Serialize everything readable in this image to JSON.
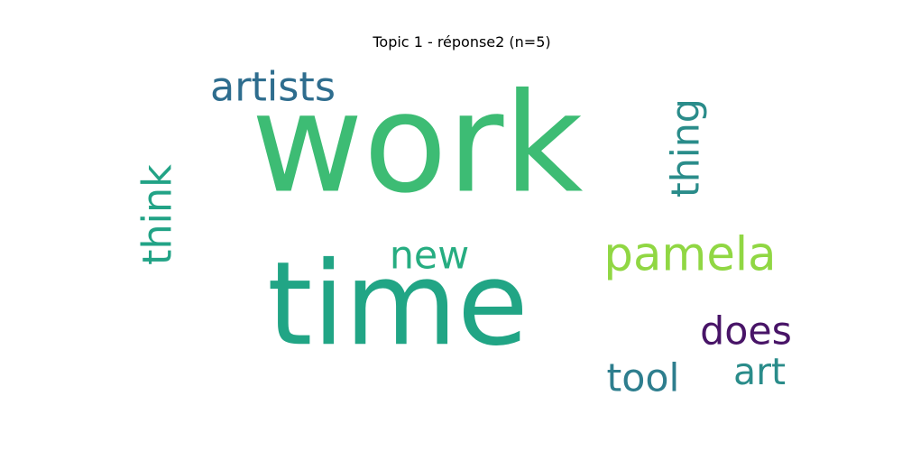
{
  "chart_data": {
    "type": "wordcloud",
    "title": "Topic 1 - réponse2 (n=5)",
    "words": [
      {
        "text": "work",
        "color": "#3dbc74"
      },
      {
        "text": "time",
        "color": "#21a585"
      },
      {
        "text": "artists",
        "color": "#2e6d8e"
      },
      {
        "text": "think",
        "color": "#22a386"
      },
      {
        "text": "thing",
        "color": "#2a8c8a"
      },
      {
        "text": "new",
        "color": "#26ad81"
      },
      {
        "text": "pamela",
        "color": "#90d743"
      },
      {
        "text": "does",
        "color": "#481467"
      },
      {
        "text": "tool",
        "color": "#2e7e8e"
      },
      {
        "text": "art",
        "color": "#2a8c8a"
      }
    ]
  }
}
